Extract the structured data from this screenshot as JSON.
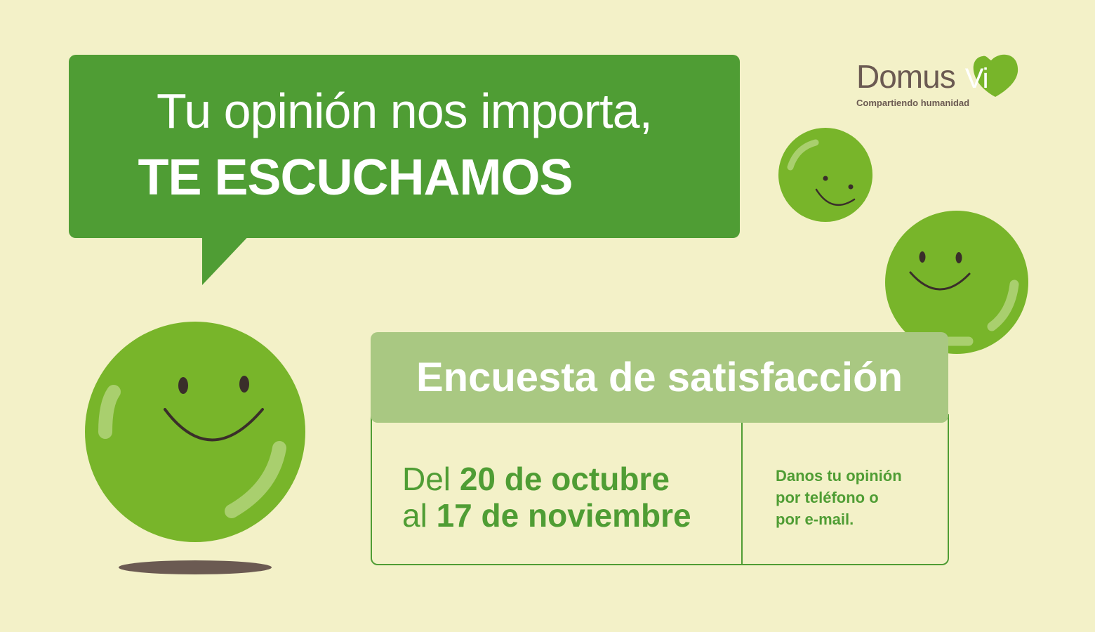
{
  "headline": {
    "line1": "Tu opinión nos importa,",
    "line2": "TE ESCUCHAMOS"
  },
  "logo": {
    "word": "Domus",
    "mark": "Vi",
    "tagline": "Compartiendo humanidad"
  },
  "survey": {
    "title": "Encuesta de satisfacción",
    "dates": {
      "prefix1": "Del",
      "range_start": "20 de octubre",
      "prefix2": "al",
      "range_end": "17 de noviembre"
    },
    "contact": [
      "Danos tu opinión",
      "por teléfono o",
      "por e-mail."
    ]
  },
  "colors": {
    "background": "#f3f1c8",
    "primary_green": "#4f9d34",
    "smiley_green": "#78b52a",
    "light_green": "#a9c882",
    "brown": "#6b5a52"
  }
}
